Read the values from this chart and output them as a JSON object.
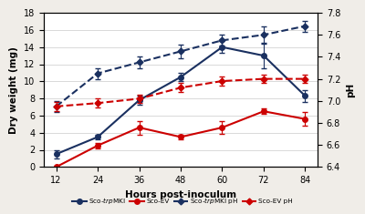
{
  "x": [
    12,
    24,
    36,
    48,
    60,
    72,
    84
  ],
  "sco_trpMKI_y": [
    1.5,
    3.5,
    7.8,
    10.5,
    14.0,
    13.0,
    8.3
  ],
  "sco_trpMKI_err": [
    0.5,
    0.3,
    0.5,
    0.5,
    0.7,
    1.5,
    0.7
  ],
  "sco_EV_y": [
    0.0,
    2.5,
    4.6,
    3.5,
    4.6,
    6.5,
    5.6
  ],
  "sco_EV_err": [
    0.1,
    0.3,
    0.8,
    0.3,
    0.7,
    0.3,
    0.8
  ],
  "sco_trpMKI_pH": [
    6.95,
    7.25,
    7.35,
    7.45,
    7.55,
    7.6,
    7.68
  ],
  "sco_trpMKI_pH_err": [
    0.05,
    0.05,
    0.05,
    0.06,
    0.05,
    0.08,
    0.05
  ],
  "sco_EV_pH": [
    6.95,
    6.98,
    7.02,
    7.12,
    7.18,
    7.2,
    7.2
  ],
  "sco_EV_pH_err": [
    0.04,
    0.04,
    0.04,
    0.04,
    0.04,
    0.04,
    0.04
  ],
  "color_navy": "#1a3060",
  "color_red": "#cc0000",
  "ylabel_left": "Dry weight (mg)",
  "ylabel_right": "pH",
  "xlabel": "Hours post-inoculum",
  "ylim_left": [
    0,
    18
  ],
  "ylim_right": [
    6.4,
    7.8
  ],
  "yticks_left": [
    0,
    2,
    4,
    6,
    8,
    10,
    12,
    14,
    16,
    18
  ],
  "yticks_right": [
    6.4,
    6.6,
    6.8,
    7.0,
    7.2,
    7.4,
    7.6,
    7.8
  ],
  "xticks": [
    12,
    24,
    36,
    48,
    60,
    72,
    84
  ],
  "background_color": "#ffffff",
  "figure_bg": "#f0ede8"
}
